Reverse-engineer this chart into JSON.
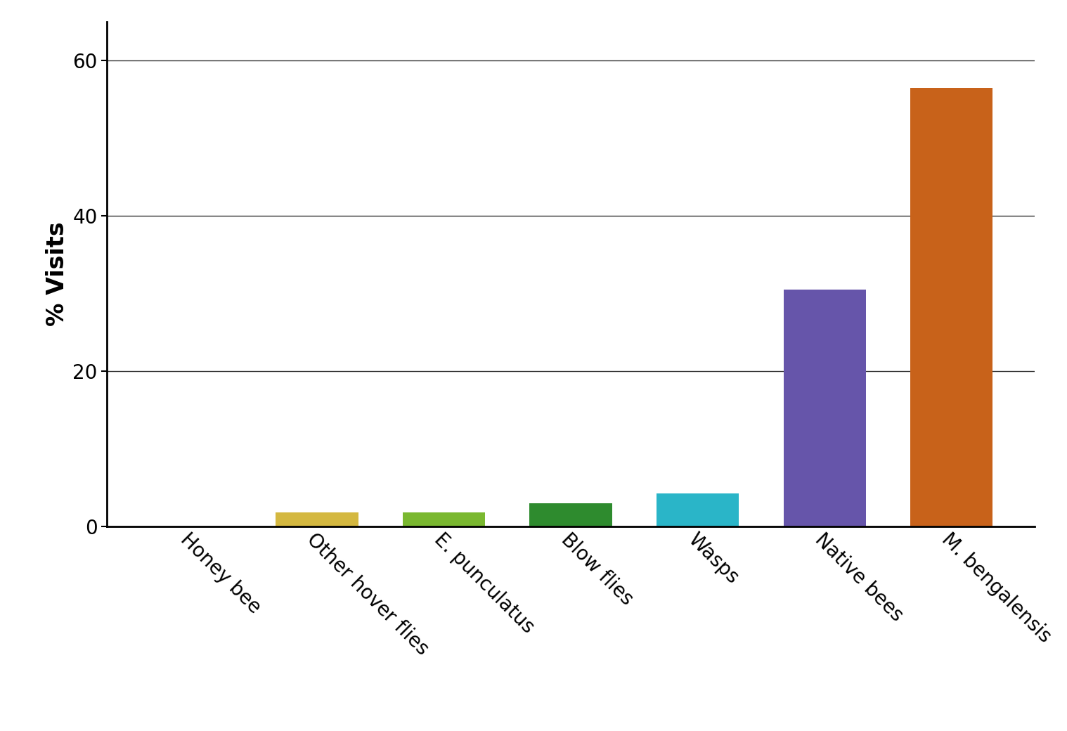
{
  "categories": [
    "Honey bee",
    "Other hover flies",
    "E. punculatus",
    "Blow flies",
    "Wasps",
    "Native bees",
    "M. bengalensis"
  ],
  "values": [
    0.0,
    1.8,
    1.8,
    3.0,
    4.2,
    30.5,
    56.5
  ],
  "bar_colors": [
    "#c8b400",
    "#d4b840",
    "#7ab830",
    "#2e8b2e",
    "#2ab5c8",
    "#6655aa",
    "#c8621a"
  ],
  "ylabel": "% Visits",
  "ylim": [
    0,
    65
  ],
  "yticks": [
    0,
    20,
    40,
    60
  ],
  "ylabel_fontsize": 24,
  "tick_fontsize": 20,
  "xtick_fontsize": 20,
  "background_color": "#ffffff",
  "bar_width": 0.65,
  "grid_color": "#333333",
  "grid_linewidth": 1.0,
  "spine_linewidth": 2.0
}
